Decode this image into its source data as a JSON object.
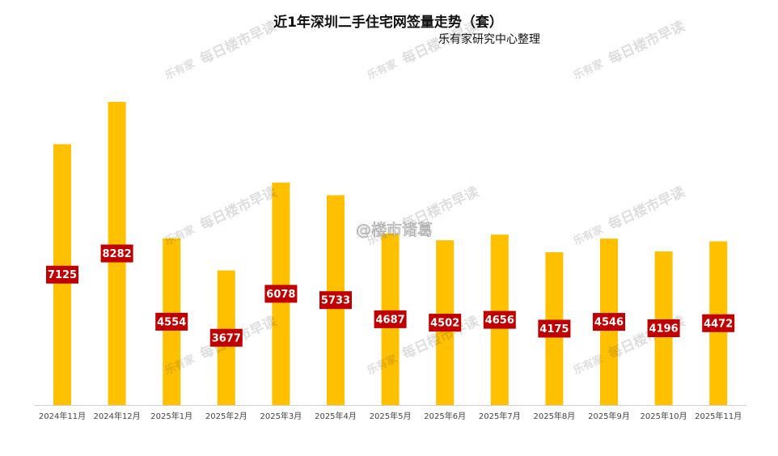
{
  "chart_data": {
    "type": "bar",
    "title": "近1年深圳二手住宅网签量走势（套）",
    "subtitle": "乐有家研究中心整理",
    "categories": [
      "2024年11月",
      "2024年12月",
      "2025年1月",
      "2025年2月",
      "2025年3月",
      "2025年4月",
      "2025年5月",
      "2025年6月",
      "2025年7月",
      "2025年8月",
      "2025年9月",
      "2025年10月",
      "2025年11月"
    ],
    "values": [
      7125,
      8282,
      4554,
      3677,
      6078,
      5733,
      4687,
      4502,
      4656,
      4175,
      4546,
      4196,
      4472
    ],
    "color": "#ffc000",
    "label_color": "#c00000",
    "watermark": "每日楼市早读",
    "watermark_logo": "乐有家",
    "credit": "@楼市诸葛"
  }
}
